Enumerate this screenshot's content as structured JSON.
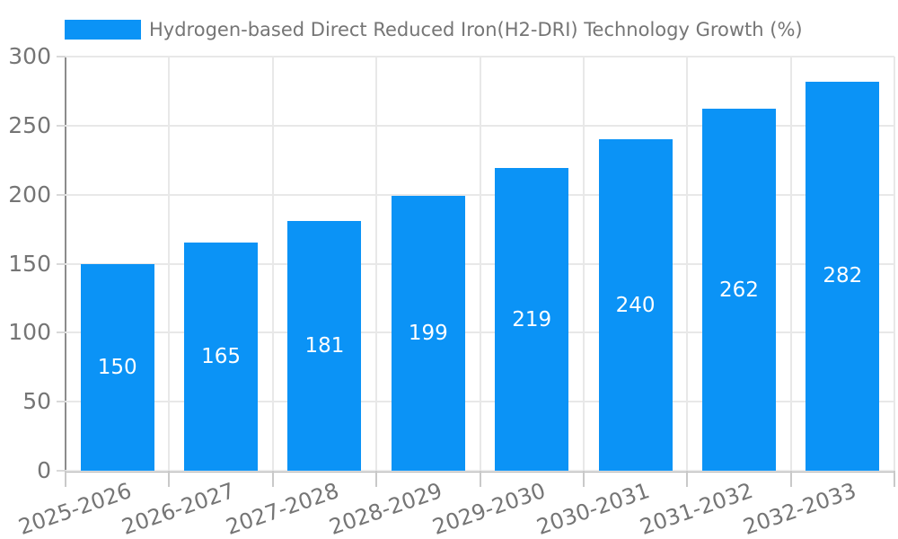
{
  "chart_data": {
    "type": "bar",
    "title": "Hydrogen-based Direct Reduced Iron(H2-DRI) Technology Growth (%)",
    "categories": [
      "2025-2026",
      "2026-2027",
      "2027-2028",
      "2028-2029",
      "2029-2030",
      "2030-2031",
      "2031-2032",
      "2032-2033"
    ],
    "values": [
      150,
      165,
      181,
      199,
      219,
      240,
      262,
      282
    ],
    "xlabel": "",
    "ylabel": "",
    "ylim": [
      0,
      300
    ],
    "yticks": [
      0,
      50,
      100,
      150,
      200,
      250,
      300
    ],
    "grid": true,
    "legend_position": "top-left",
    "value_labels_position": "inside-center",
    "colors": {
      "bar": "#0b93f6",
      "value_label": "#ffffff",
      "tick_label": "#757575",
      "grid": "#e8e8e8",
      "x_axis": "#b3b3b3",
      "y_axis": "#8c8c8c"
    }
  }
}
